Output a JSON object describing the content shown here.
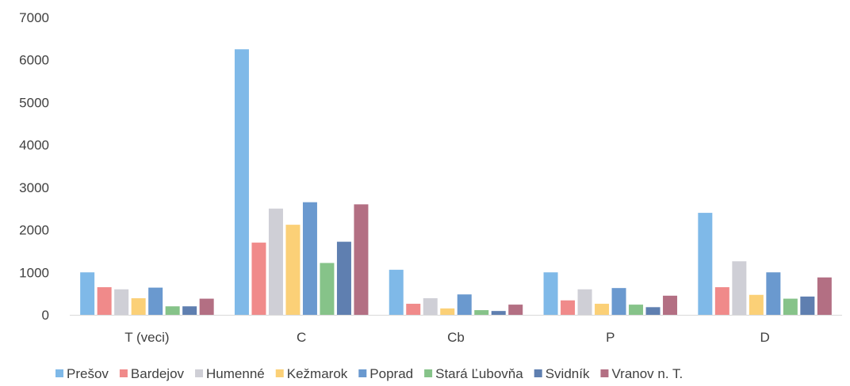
{
  "chart_data": {
    "type": "bar",
    "categories": [
      "T (veci)",
      "C",
      "Cb",
      "P",
      "D"
    ],
    "series": [
      {
        "name": "Prešov",
        "color": "#7fb9e8",
        "values": [
          1000,
          6250,
          1060,
          1000,
          2400
        ]
      },
      {
        "name": "Bardejov",
        "color": "#f08a8a",
        "values": [
          650,
          1700,
          260,
          340,
          650
        ]
      },
      {
        "name": "Humenné",
        "color": "#cfcfd6",
        "values": [
          600,
          2500,
          390,
          600,
          1260
        ]
      },
      {
        "name": "Kežmarok",
        "color": "#fbd077",
        "values": [
          390,
          2120,
          150,
          260,
          470
        ]
      },
      {
        "name": "Poprad",
        "color": "#6a99cf",
        "values": [
          640,
          2650,
          480,
          630,
          1000
        ]
      },
      {
        "name": "Stará Ľubovňa",
        "color": "#86c389",
        "values": [
          200,
          1220,
          110,
          240,
          380
        ]
      },
      {
        "name": "Svidník",
        "color": "#5f7fb0",
        "values": [
          200,
          1720,
          90,
          180,
          430
        ]
      },
      {
        "name": "Vranov n. T.",
        "color": "#b36f83",
        "values": [
          380,
          2600,
          240,
          450,
          880
        ]
      }
    ],
    "yticks": [
      "0",
      "1000",
      "2000",
      "3000",
      "4000",
      "5000",
      "6000",
      "7000"
    ],
    "ylim": [
      0,
      7000
    ],
    "grid": false,
    "legend": "bottom"
  }
}
